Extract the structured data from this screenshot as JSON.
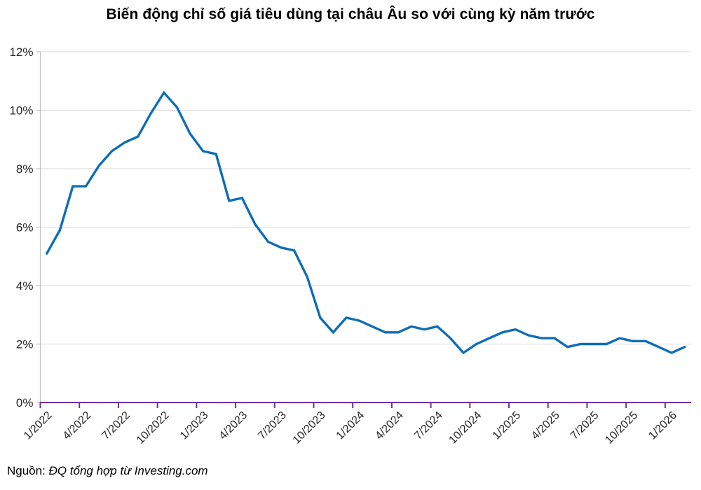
{
  "page": {
    "title": "Biến động chỉ số giá tiêu dùng tại châu Âu so với cùng kỳ năm trước",
    "source_prefix": "Nguồn: ",
    "source_text": "ĐQ tổng hợp từ Investing.com"
  },
  "colors": {
    "line": "#0f6db7",
    "x_axis": "#7030a0",
    "y_axis": "#bfbfbf",
    "gridline": "#d9d9d9",
    "text": "#262626"
  },
  "chart_data": {
    "type": "line",
    "title": "Biến động chỉ số giá tiêu dùng tại châu Âu so với cùng kỳ năm trước",
    "x": [
      "1/2022",
      "2/2022",
      "3/2022",
      "4/2022",
      "5/2022",
      "6/2022",
      "7/2022",
      "8/2022",
      "9/2022",
      "10/2022",
      "11/2022",
      "12/2022",
      "1/2023",
      "2/2023",
      "3/2023",
      "4/2023",
      "5/2023",
      "6/2023",
      "7/2023",
      "8/2023",
      "9/2023",
      "10/2023",
      "11/2023",
      "12/2023",
      "1/2024",
      "2/2024",
      "3/2024",
      "4/2024",
      "5/2024",
      "6/2024",
      "7/2024",
      "8/2024",
      "9/2024",
      "10/2024",
      "11/2024",
      "12/2024",
      "1/2025",
      "2/2025",
      "3/2025",
      "4/2025",
      "5/2025",
      "6/2025",
      "7/2025",
      "8/2025",
      "9/2025",
      "10/2025",
      "11/2025",
      "12/2025",
      "1/2026",
      "2/2026"
    ],
    "values": [
      5.1,
      5.9,
      7.4,
      7.4,
      8.1,
      8.6,
      8.9,
      9.1,
      9.9,
      10.6,
      10.1,
      9.2,
      8.6,
      8.5,
      6.9,
      7.0,
      6.1,
      5.5,
      5.3,
      5.2,
      4.3,
      2.9,
      2.4,
      2.9,
      2.8,
      2.6,
      2.4,
      2.4,
      2.6,
      2.5,
      2.6,
      2.2,
      1.7,
      2.0,
      2.2,
      2.4,
      2.5,
      2.3,
      2.2,
      2.2,
      1.9,
      2.0,
      2.0,
      2.0,
      2.2,
      2.1,
      2.1,
      1.9,
      1.7,
      1.9
    ],
    "x_tick_labels": [
      "1/2022",
      "4/2022",
      "7/2022",
      "10/2022",
      "1/2023",
      "4/2023",
      "7/2023",
      "10/2023",
      "1/2024",
      "4/2024",
      "7/2024",
      "10/2024",
      "1/2025",
      "4/2025",
      "7/2025",
      "10/2025",
      "1/2026"
    ],
    "y_ticks": [
      0,
      2,
      4,
      6,
      8,
      10,
      12
    ],
    "y_tick_labels": [
      "0%",
      "2%",
      "4%",
      "6%",
      "8%",
      "10%",
      "12%"
    ],
    "ylim": [
      0,
      12
    ],
    "xlabel": "",
    "ylabel": "",
    "grid": "horizontal",
    "legend": "none"
  }
}
